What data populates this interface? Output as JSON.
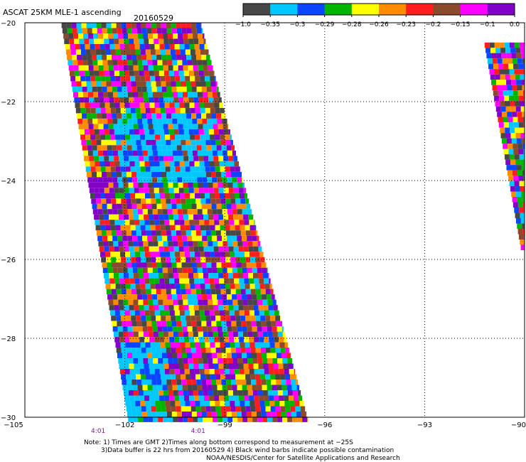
{
  "title": "ASCAT 25KM MLE-1 ascending",
  "date": "20160529",
  "colorbar": {
    "colors": [
      "#474747",
      "#00c8ff",
      "#0a46ff",
      "#00b400",
      "#ffff00",
      "#ff8c00",
      "#ff1e1e",
      "#8b4a2b",
      "#ff00ff",
      "#8200c8"
    ],
    "labels": [
      "−1.0",
      "−0.35",
      "−0.3",
      "−0.29",
      "−0.28",
      "−0.26",
      "−0.23",
      "−0.2",
      "−0.15",
      "−0.1",
      "0.0"
    ]
  },
  "chart_data": {
    "type": "heatmap",
    "xlim": [
      -105,
      -90
    ],
    "ylim": [
      -30,
      -20
    ],
    "xticks": [
      -105,
      -102,
      -99,
      -96,
      -93,
      -90
    ],
    "xtick_labels": [
      "−105",
      "−102",
      "−99",
      "−96",
      "−93",
      "−90"
    ],
    "yticks": [
      -30,
      -28,
      -26,
      -24,
      -22,
      -20
    ],
    "ytick_labels": [
      "−30",
      "−28",
      "−26",
      "−24",
      "−22",
      "−20"
    ],
    "grid": true,
    "value_bins": [
      -1.0,
      -0.35,
      -0.3,
      -0.29,
      -0.28,
      -0.26,
      -0.23,
      -0.2,
      -0.15,
      -0.1,
      0.0
    ],
    "swaths": [
      {
        "lat_top": -20,
        "lat_bottom": -30,
        "lon_left_top": -103.9,
        "lon_right_top": -99.7,
        "lon_left_bottom": -101.9,
        "lon_right_bottom": -96.5
      },
      {
        "lat_top": -20.5,
        "lat_bottom": -25.7,
        "lon_left_top": -91.2,
        "lon_right_top": -90.0,
        "lon_left_bottom": -90.1,
        "lon_right_bottom": -90.0
      }
    ],
    "time_labels": [
      {
        "lon": -102.8,
        "text": "4:01"
      },
      {
        "lon": -99.8,
        "text": "4:01"
      }
    ]
  },
  "notes": [
    "Note: 1) Times are GMT 2)Times along bottom correspond to measurement at −25S",
    "3)Data buffer is 22 hrs from 20160529 4) Black wind barbs indicate possible contamination",
    "NOAA/NESDIS/Center for Satellite Applications and Research"
  ]
}
